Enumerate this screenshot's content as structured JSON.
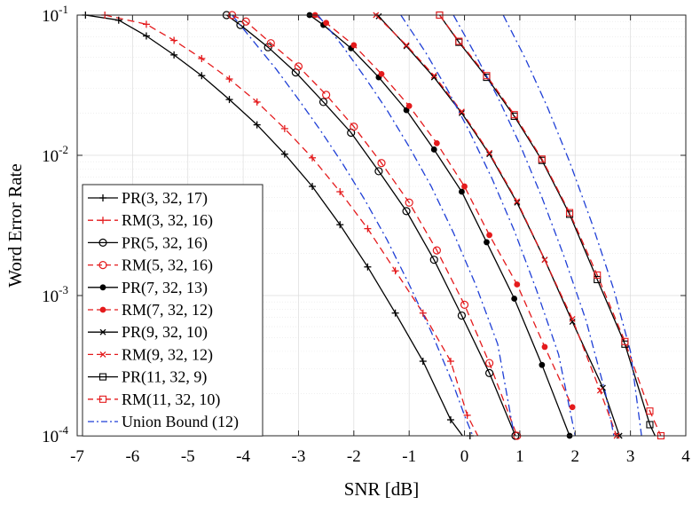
{
  "chart_data": {
    "type": "line",
    "title": "",
    "xlabel": "SNR [dB]",
    "ylabel": "Word Error Rate",
    "xlim": [
      -7,
      4
    ],
    "ylim": [
      0.0001,
      0.1
    ],
    "yscale": "log",
    "grid": true,
    "legend_position": "bottom-left",
    "x_ticks": [
      -7,
      -6,
      -5,
      -4,
      -3,
      -2,
      -1,
      0,
      1,
      2,
      3,
      4
    ],
    "x_tick_labels": [
      "-7",
      "-6",
      "-5",
      "-4",
      "-3",
      "-2",
      "-1",
      "0",
      "1",
      "2",
      "3",
      "4"
    ],
    "y_ticks": [
      0.0001,
      0.001,
      0.01,
      0.1
    ],
    "y_tick_labels": [
      {
        "base": "10",
        "exp": "-4"
      },
      {
        "base": "10",
        "exp": "-3"
      },
      {
        "base": "10",
        "exp": "-2"
      },
      {
        "base": "10",
        "exp": "-1"
      }
    ],
    "series": [
      {
        "name": "PR(3, 32, 17)",
        "color": "#000000",
        "dash": "solid",
        "marker": "plus",
        "x": [
          -6.85,
          -6.25,
          -5.75,
          -5.25,
          -4.75,
          -4.25,
          -3.75,
          -3.25,
          -2.75,
          -2.25,
          -1.75,
          -1.25,
          -0.75,
          -0.25,
          0.05,
          0.1
        ],
        "y": [
          0.1,
          0.092,
          0.071,
          0.052,
          0.037,
          0.025,
          0.0165,
          0.0102,
          0.006,
          0.0032,
          0.0016,
          0.00075,
          0.00034,
          0.00013,
          9e-05,
          0.0001
        ]
      },
      {
        "name": "RM(3, 32, 16)",
        "color": "#e41a1c",
        "dash": "dash",
        "marker": "plus",
        "x": [
          -6.5,
          -5.75,
          -5.25,
          -4.75,
          -4.25,
          -3.75,
          -3.25,
          -2.75,
          -2.25,
          -1.75,
          -1.25,
          -0.75,
          -0.25,
          0.05,
          0.3
        ],
        "y": [
          0.1,
          0.086,
          0.066,
          0.049,
          0.035,
          0.024,
          0.0155,
          0.0096,
          0.0055,
          0.003,
          0.0015,
          0.00075,
          0.00034,
          0.00014,
          9e-05
        ]
      },
      {
        "name": "PR(5, 32, 16)",
        "color": "#000000",
        "dash": "solid",
        "marker": "circle",
        "x": [
          -4.3,
          -4.05,
          -3.55,
          -3.05,
          -2.55,
          -2.05,
          -1.55,
          -1.05,
          -0.55,
          -0.05,
          0.45,
          0.92
        ],
        "y": [
          0.1,
          0.085,
          0.059,
          0.039,
          0.024,
          0.0145,
          0.0077,
          0.004,
          0.0018,
          0.00072,
          0.00028,
          0.0001
        ]
      },
      {
        "name": "RM(5, 32, 16)",
        "color": "#e41a1c",
        "dash": "dash",
        "marker": "circle",
        "x": [
          -4.2,
          -3.95,
          -3.5,
          -3.0,
          -2.5,
          -2.0,
          -1.5,
          -1.0,
          -0.5,
          0.0,
          0.45,
          0.95
        ],
        "y": [
          0.1,
          0.09,
          0.063,
          0.043,
          0.027,
          0.016,
          0.0088,
          0.0046,
          0.0021,
          0.00086,
          0.00033,
          0.0001
        ]
      },
      {
        "name": "PR(7, 32, 13)",
        "color": "#000000",
        "dash": "solid",
        "marker": "dot",
        "x": [
          -2.8,
          -2.55,
          -2.05,
          -1.55,
          -1.05,
          -0.55,
          -0.05,
          0.4,
          0.9,
          1.4,
          1.9
        ],
        "y": [
          0.1,
          0.085,
          0.058,
          0.036,
          0.021,
          0.011,
          0.0055,
          0.0024,
          0.00095,
          0.00032,
          0.0001
        ]
      },
      {
        "name": "RM(7, 32, 12)",
        "color": "#e41a1c",
        "dash": "dash",
        "marker": "dot",
        "x": [
          -2.7,
          -2.5,
          -2.0,
          -1.5,
          -1.0,
          -0.5,
          0.0,
          0.45,
          0.95,
          1.45,
          1.95
        ],
        "y": [
          0.1,
          0.088,
          0.061,
          0.038,
          0.0225,
          0.0122,
          0.006,
          0.0027,
          0.0012,
          0.00043,
          0.00016
        ]
      },
      {
        "name": "PR(9, 32, 10)",
        "color": "#000000",
        "dash": "solid",
        "marker": "cross",
        "x": [
          -1.55,
          -1.05,
          -0.55,
          -0.05,
          0.45,
          0.95,
          1.45,
          1.95,
          2.5,
          2.8
        ],
        "y": [
          0.098,
          0.06,
          0.036,
          0.02,
          0.0102,
          0.0046,
          0.0018,
          0.00065,
          0.00022,
          0.0001
        ]
      },
      {
        "name": "RM(9, 32, 12)",
        "color": "#e41a1c",
        "dash": "dash",
        "marker": "cross",
        "x": [
          -1.6,
          -1.05,
          -0.55,
          -0.05,
          0.45,
          0.95,
          1.45,
          1.95,
          2.45,
          2.75
        ],
        "y": [
          0.1,
          0.061,
          0.037,
          0.0205,
          0.0104,
          0.0047,
          0.0018,
          0.00068,
          0.00021,
          0.0001
        ]
      },
      {
        "name": "PR(11, 32, 9)",
        "color": "#000000",
        "dash": "solid",
        "marker": "square",
        "x": [
          -0.45,
          -0.1,
          0.4,
          0.9,
          1.4,
          1.9,
          2.4,
          2.9,
          3.35,
          3.5
        ],
        "y": [
          0.1,
          0.064,
          0.036,
          0.019,
          0.0092,
          0.0038,
          0.0013,
          0.00045,
          0.00012,
          9e-05
        ]
      },
      {
        "name": "RM(11, 32, 10)",
        "color": "#e41a1c",
        "dash": "dash",
        "marker": "square",
        "x": [
          -0.45,
          -0.1,
          0.4,
          0.9,
          1.4,
          1.9,
          2.4,
          2.9,
          3.35,
          3.55
        ],
        "y": [
          0.1,
          0.065,
          0.037,
          0.0195,
          0.0094,
          0.0039,
          0.0014,
          0.00047,
          0.00015,
          0.0001
        ]
      },
      {
        "name": "Union Bound (12)",
        "color": "#1f3fd6",
        "dash": "dashdot",
        "marker": "none",
        "x": [
          -4.2,
          -3.8,
          -3.4,
          -3.0,
          -2.6,
          -2.2,
          -1.8,
          -1.4,
          -1.0,
          -0.6,
          -0.2,
          0.0,
          0.15
        ],
        "y": [
          0.1,
          0.064,
          0.041,
          0.025,
          0.015,
          0.0087,
          0.0048,
          0.0025,
          0.0012,
          0.00055,
          0.00023,
          0.00014,
          0.0001
        ]
      },
      {
        "name": "Union Bound (12)",
        "color": "#1f3fd6",
        "dash": "dashdot",
        "marker": "none",
        "legend": false,
        "x": [
          -2.65,
          -2.2,
          -1.8,
          -1.4,
          -1.0,
          -0.6,
          -0.2,
          0.2,
          0.6,
          0.9
        ],
        "y": [
          0.1,
          0.06,
          0.036,
          0.021,
          0.0115,
          0.006,
          0.0028,
          0.0012,
          0.00045,
          0.0001
        ]
      },
      {
        "name": "Union Bound (12)",
        "color": "#1f3fd6",
        "dash": "dashdot",
        "marker": "none",
        "legend": false,
        "x": [
          -1.15,
          -0.7,
          -0.3,
          0.1,
          0.5,
          0.9,
          1.3,
          1.7,
          2.0
        ],
        "y": [
          0.1,
          0.054,
          0.029,
          0.0145,
          0.0068,
          0.0029,
          0.0011,
          0.00038,
          0.0001
        ]
      },
      {
        "name": "Union Bound (12)",
        "color": "#1f3fd6",
        "dash": "dashdot",
        "marker": "none",
        "legend": false,
        "x": [
          -0.2,
          0.2,
          0.6,
          1.0,
          1.4,
          1.8,
          2.2,
          2.55,
          2.7
        ],
        "y": [
          0.1,
          0.052,
          0.026,
          0.012,
          0.005,
          0.0019,
          0.00066,
          0.0002,
          0.0001
        ]
      },
      {
        "name": "Union Bound (12)",
        "color": "#1f3fd6",
        "dash": "dashdot",
        "marker": "none",
        "legend": false,
        "x": [
          0.7,
          1.1,
          1.5,
          1.9,
          2.3,
          2.7,
          3.0,
          3.2
        ],
        "y": [
          0.1,
          0.049,
          0.022,
          0.009,
          0.0033,
          0.0011,
          0.0004,
          0.0001
        ]
      }
    ]
  }
}
